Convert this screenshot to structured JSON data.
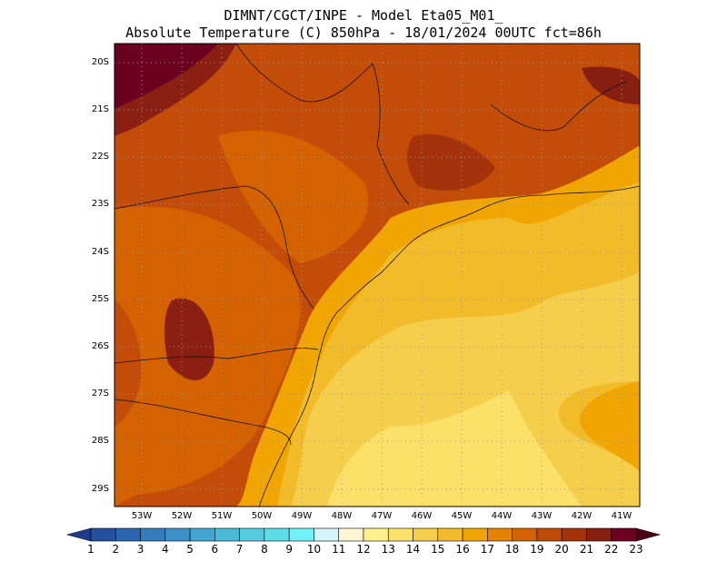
{
  "header": {
    "line1": "DIMNT/CGCT/INPE -  Model Eta05_M01_",
    "line2": "Absolute Temperature (C) 850hPa -  18/01/2024 00UTC fct=86h"
  },
  "map": {
    "lat_labels": [
      "20S",
      "21S",
      "22S",
      "23S",
      "24S",
      "25S",
      "26S",
      "27S",
      "28S",
      "29S"
    ],
    "lon_labels": [
      "53W",
      "52W",
      "51W",
      "50W",
      "49W",
      "48W",
      "47W",
      "46W",
      "45W",
      "44W",
      "43W",
      "42W",
      "41W"
    ]
  },
  "colorbar": {
    "labels": [
      "1",
      "2",
      "3",
      "4",
      "5",
      "6",
      "7",
      "8",
      "9",
      "10",
      "11",
      "12",
      "13",
      "14",
      "15",
      "16",
      "17",
      "18",
      "19",
      "20",
      "21",
      "22",
      "23"
    ],
    "colors": [
      "#1e3a8c",
      "#24509e",
      "#2c66ae",
      "#347cbc",
      "#3c91c8",
      "#43a6d2",
      "#4bbad9",
      "#55ccdf",
      "#5fdde6",
      "#6ff3f8",
      "#d6f4fb",
      "#fff6d6",
      "#fff08f",
      "#fbe06a",
      "#f5cf4b",
      "#f2bb2a",
      "#f0a500",
      "#e58300",
      "#d46200",
      "#c04a07",
      "#a4330c",
      "#861f10",
      "#6b0020",
      "#4d0014"
    ]
  }
}
